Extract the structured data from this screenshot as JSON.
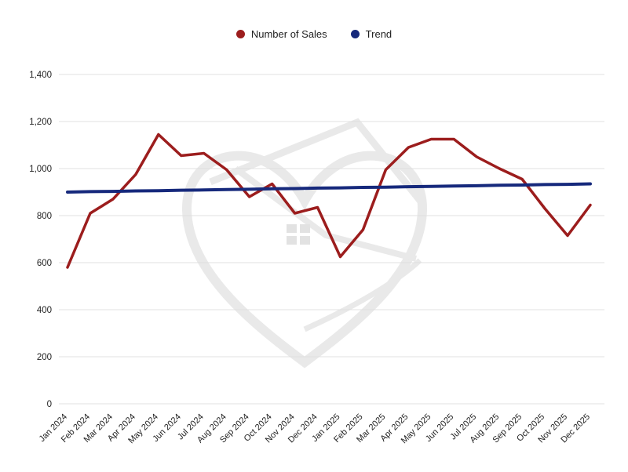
{
  "legend": {
    "items": [
      {
        "label": "Number of Sales",
        "color": "#9c1d1d"
      },
      {
        "label": "Trend",
        "color": "#16297c"
      }
    ]
  },
  "chart_data": {
    "type": "line",
    "title": "",
    "xlabel": "",
    "ylabel": "",
    "ylim": [
      0,
      1400
    ],
    "ytick_step": 200,
    "grid": true,
    "legend_position": "top-center",
    "x": [
      "Jan 2024",
      "Feb 2024",
      "Mar 2024",
      "Apr 2024",
      "May 2024",
      "Jun 2024",
      "Jul 2024",
      "Aug 2024",
      "Sep 2024",
      "Oct 2024",
      "Nov 2024",
      "Dec 2024",
      "Jan 2025",
      "Feb 2025",
      "Mar 2025",
      "Apr 2025",
      "May 2025",
      "Jun 2025",
      "Jul 2025",
      "Aug 2025",
      "Sep 2025",
      "Oct 2025",
      "Nov 2025",
      "Dec 2025"
    ],
    "series": [
      {
        "name": "Number of Sales",
        "color": "#9c1d1d",
        "stroke_width": 3.5,
        "values": [
          580,
          810,
          870,
          975,
          1145,
          1055,
          1065,
          995,
          880,
          935,
          810,
          835,
          625,
          740,
          995,
          1090,
          1125,
          1125,
          1050,
          1000,
          955,
          830,
          715,
          845
        ]
      },
      {
        "name": "Trend",
        "color": "#16297c",
        "stroke_width": 4,
        "values": [
          900,
          902,
          903,
          905,
          906,
          908,
          909,
          911,
          912,
          914,
          915,
          917,
          918,
          920,
          921,
          923,
          924,
          926,
          927,
          929,
          930,
          932,
          933,
          935
        ]
      }
    ]
  }
}
